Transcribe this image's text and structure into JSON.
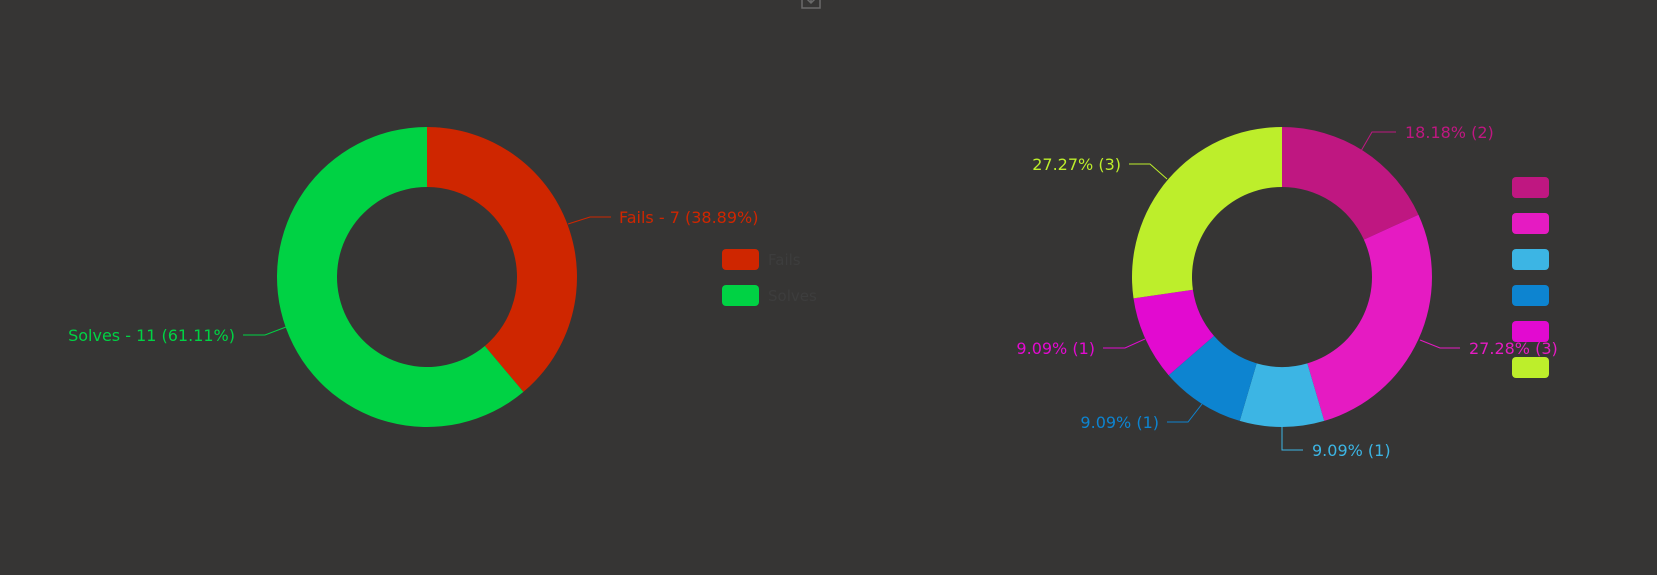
{
  "toolbar": {
    "download_icon": "download-icon"
  },
  "chart_data": [
    {
      "type": "pie",
      "style": "donut",
      "title": "",
      "labels": [
        "Fails",
        "Solves"
      ],
      "values": [
        7,
        11
      ],
      "percentages": [
        38.89,
        61.11
      ],
      "colors": [
        "#cf2600",
        "#00d244"
      ],
      "slice_labels": [
        "Fails - 7 (38.89%)",
        "Solves - 11 (61.11%)"
      ],
      "legend": {
        "position": "right",
        "entries": [
          "Fails",
          "Solves"
        ]
      }
    },
    {
      "type": "pie",
      "style": "donut",
      "title": "",
      "labels": [
        "",
        "",
        "",
        "",
        "",
        ""
      ],
      "values": [
        2,
        3,
        1,
        1,
        1,
        3
      ],
      "percentages": [
        18.18,
        27.28,
        9.09,
        9.09,
        9.09,
        27.27
      ],
      "colors": [
        "#bf1781",
        "#e51bc2",
        "#3cb5e4",
        "#0d84d0",
        "#e20ad0",
        "#bdee2b"
      ],
      "slice_labels": [
        "18.18% (2)",
        "27.28% (3)",
        "9.09% (1)",
        "9.09% (1)",
        "9.09% (1)",
        "27.27% (3)"
      ],
      "legend": {
        "position": "right",
        "entries": [
          "",
          "",
          "",
          "",
          "",
          ""
        ]
      }
    }
  ]
}
